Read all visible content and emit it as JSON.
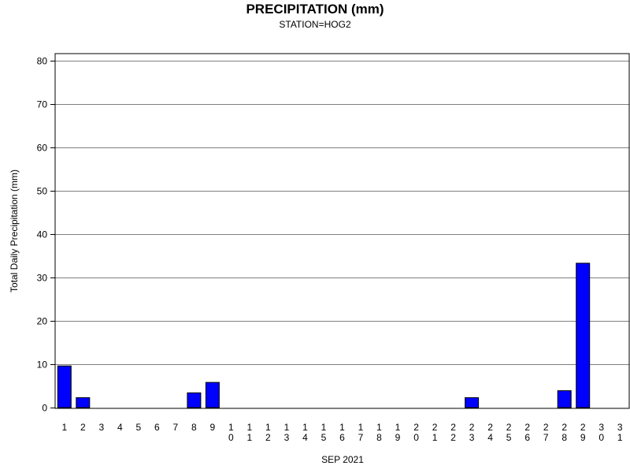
{
  "chart_data": {
    "type": "bar",
    "title": "PRECIPITATION (mm)",
    "subtitle": "STATION=HOG2",
    "xlabel": "SEP 2021",
    "ylabel": "Total Daily Precipitation (mm)",
    "ylim": [
      0,
      80
    ],
    "yticks": [
      "0",
      "10",
      "20",
      "30",
      "40",
      "50",
      "60",
      "70",
      "80"
    ],
    "grid": true,
    "bar_color": "#0000ff",
    "categories": [
      "1",
      "2",
      "3",
      "4",
      "5",
      "6",
      "7",
      "8",
      "9",
      "10",
      "11",
      "12",
      "13",
      "14",
      "15",
      "16",
      "17",
      "18",
      "19",
      "20",
      "21",
      "22",
      "23",
      "24",
      "25",
      "26",
      "27",
      "28",
      "29",
      "30",
      "31"
    ],
    "values": [
      9.6,
      2.3,
      0,
      0,
      0,
      0,
      0,
      3.4,
      5.8,
      0,
      0,
      0,
      0,
      0,
      0,
      0,
      0,
      0,
      0,
      0,
      0,
      0,
      2.3,
      0,
      0,
      0,
      0,
      3.9,
      33.3,
      0,
      0
    ]
  }
}
